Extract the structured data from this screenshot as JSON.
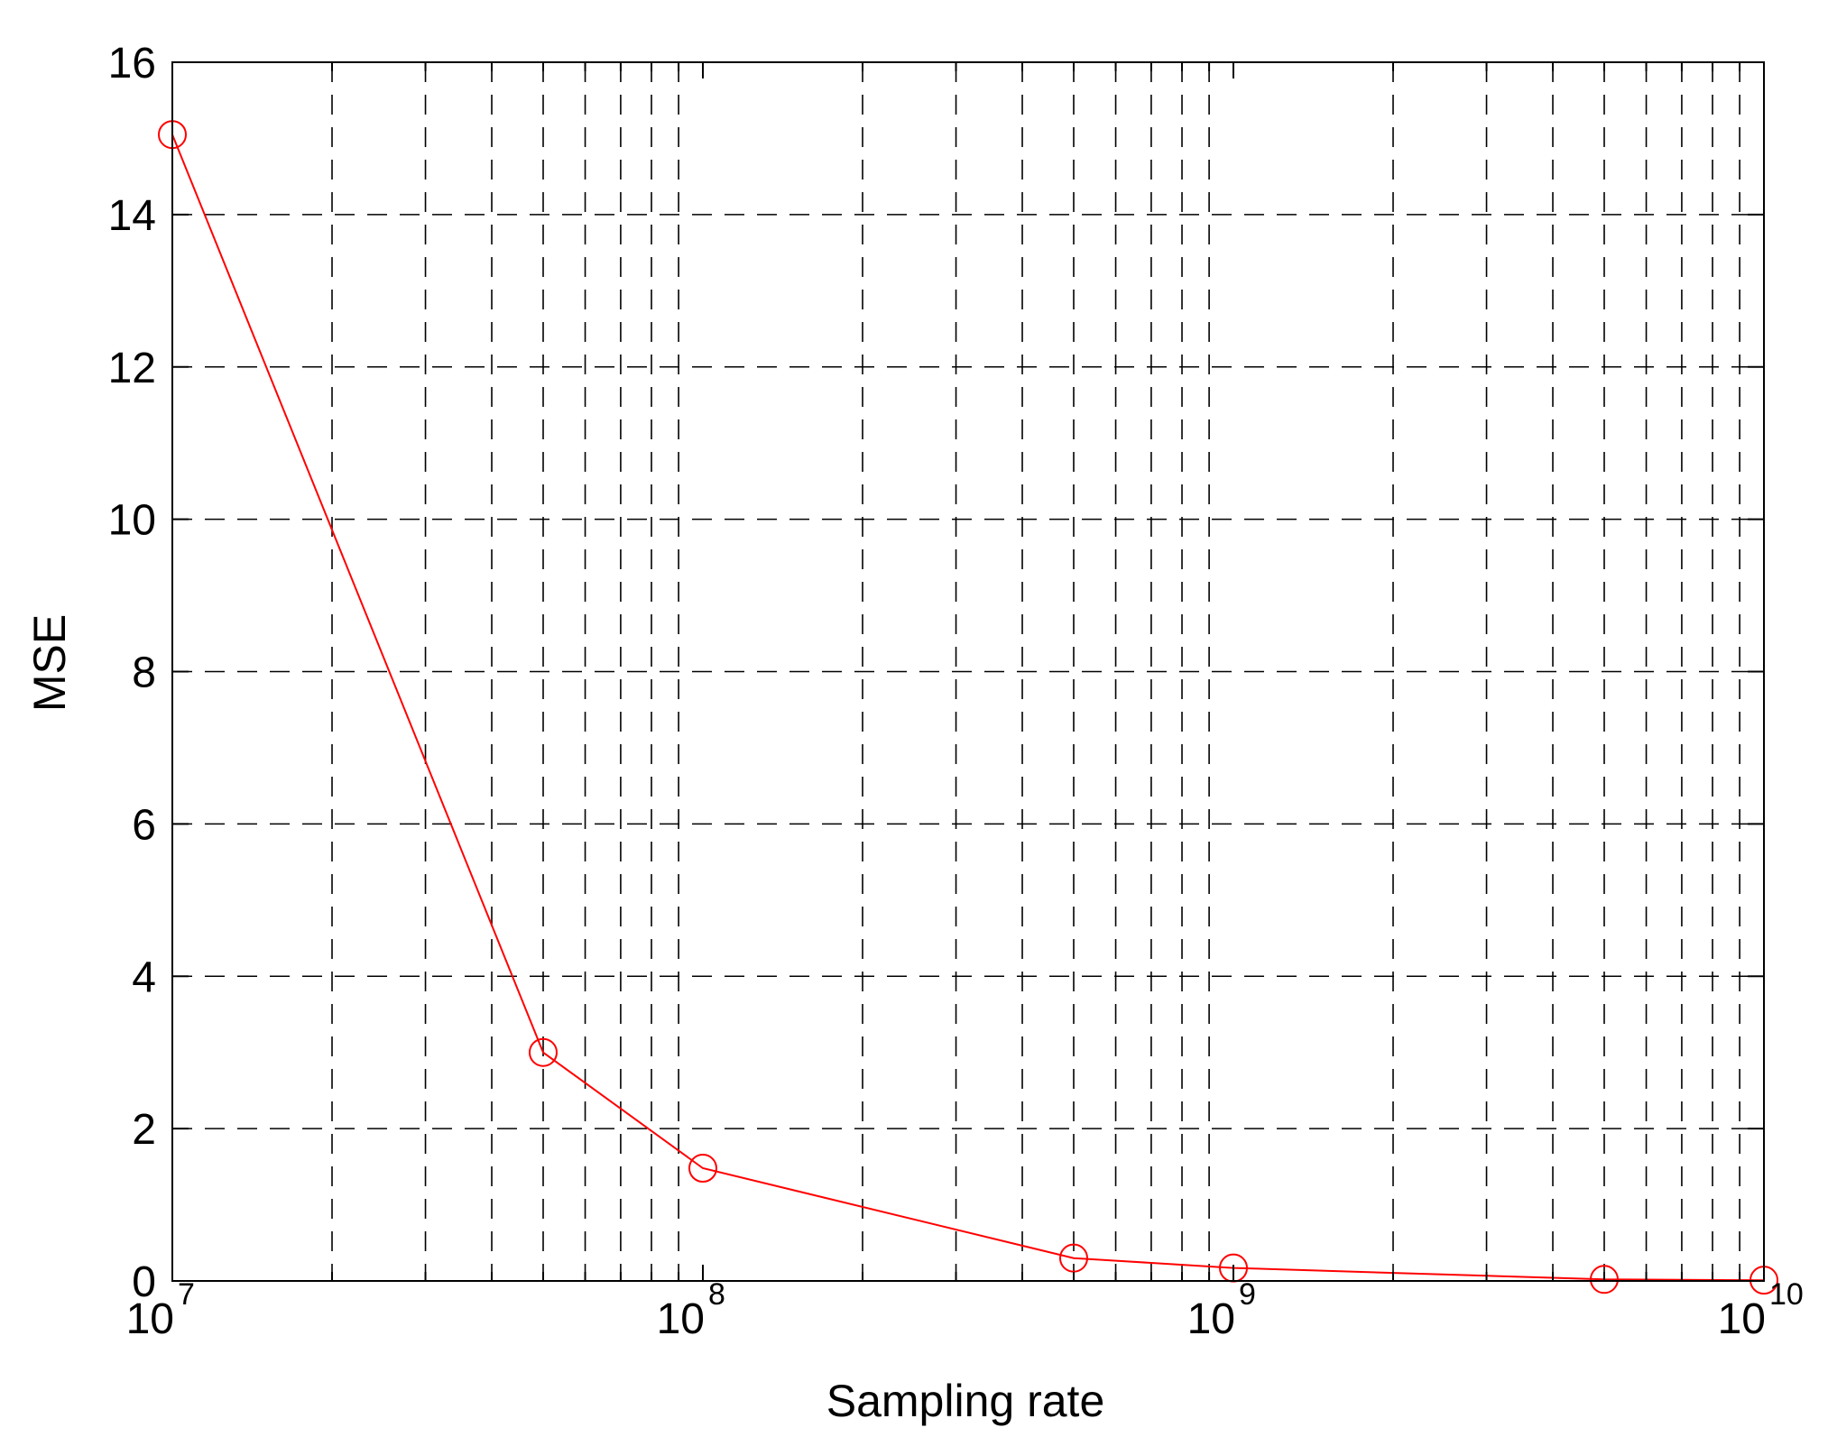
{
  "chart_data": {
    "type": "line",
    "title": "",
    "xlabel": "Sampling rate",
    "ylabel": "MSE",
    "xscale": "log",
    "xlim": [
      10000000,
      10000000000
    ],
    "ylim": [
      0,
      16
    ],
    "grid": true,
    "grid_style": "dashed",
    "legend": "none",
    "x_ticks": [
      {
        "value": 10000000,
        "base": "10",
        "exp": "7"
      },
      {
        "value": 100000000,
        "base": "10",
        "exp": "8"
      },
      {
        "value": 1000000000,
        "base": "10",
        "exp": "9"
      },
      {
        "value": 10000000000,
        "base": "10",
        "exp": "10"
      }
    ],
    "y_ticks": [
      "0",
      "2",
      "4",
      "6",
      "8",
      "10",
      "12",
      "14",
      "16"
    ],
    "series": [
      {
        "color": "#ff0000",
        "marker": "circle",
        "x": [
          10000000,
          50000000,
          100000000,
          500000000,
          1000000000,
          5000000000,
          10000000000
        ],
        "y": [
          15.05,
          3.0,
          1.48,
          0.3,
          0.17,
          0.02,
          0.01
        ]
      }
    ]
  }
}
